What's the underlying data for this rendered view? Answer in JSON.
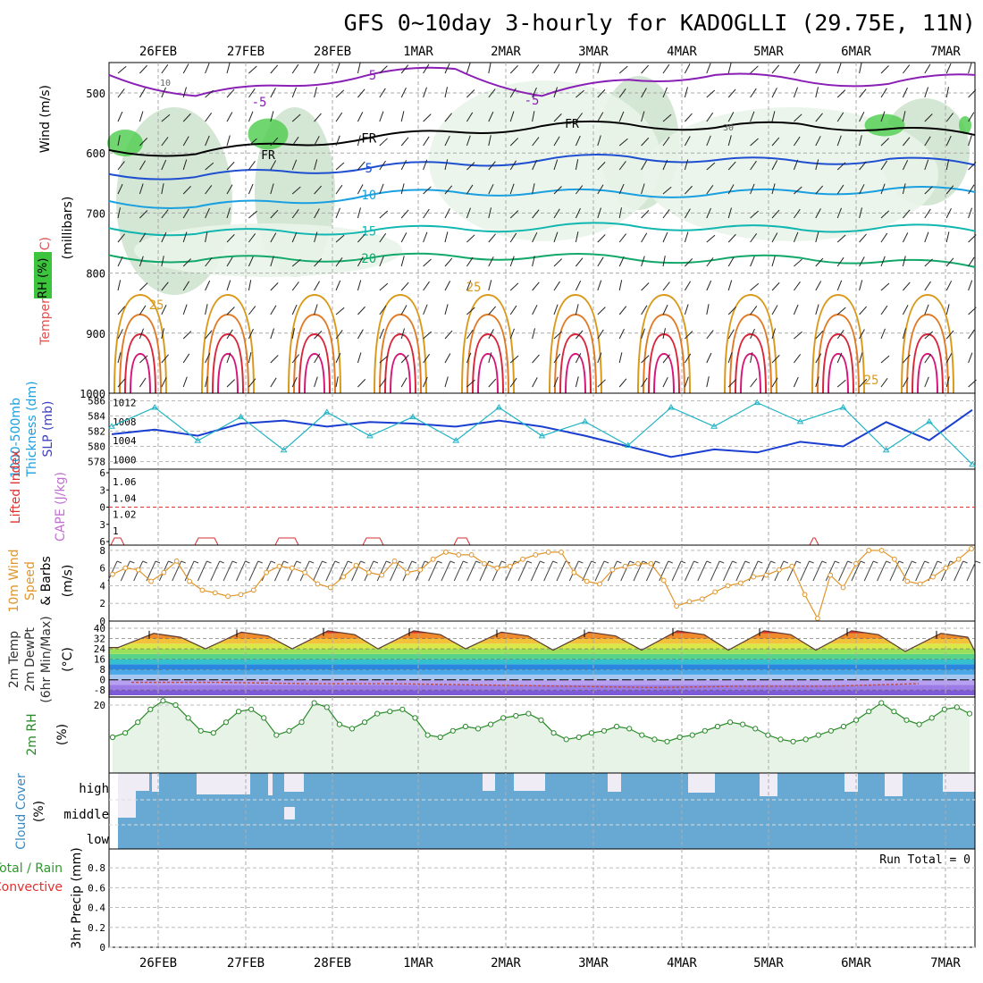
{
  "title": "GFS 0~10day 3-hourly for KADOGLLI (29.75E, 11N)",
  "dates_top": [
    "26FEB",
    "27FEB",
    "28FEB",
    "1MAR",
    "2MAR",
    "3MAR",
    "4MAR",
    "5MAR",
    "6MAR",
    "7MAR"
  ],
  "dates_bottom": [
    "26FEB",
    "27FEB",
    "28FEB",
    "1MAR",
    "2MAR",
    "3MAR",
    "4MAR",
    "5MAR",
    "6MAR",
    "7MAR"
  ],
  "colors": {
    "purple": "#8a1fb5",
    "black": "#000000",
    "blue": "#1f4fd1",
    "lightblue": "#1aa0e0",
    "teal": "#10b6b0",
    "green": "#12a86a",
    "orange": "#d99a1b",
    "dkorange": "#e07a25",
    "red": "#d9263a",
    "magenta": "#d6157a",
    "rh_light": "#e8f3e8",
    "rh_mid": "#b4c8b4",
    "rh_dark": "#4ccd4c",
    "cloud": "#68a9d4"
  },
  "panel_labels": {
    "upper": {
      "wind": "Wind (m/s)",
      "temp": "Temperature (°C)",
      "rh": "RH (%)",
      "pres": "(millibars)"
    },
    "thk": {
      "l1": "1000-500mb",
      "l2": "Thickness (dm)",
      "l3": "SLP (mb)"
    },
    "cape": {
      "l1": "Lifted Index",
      "l2": "CAPE (J/kg)"
    },
    "wind10": {
      "l1": "10m Wind",
      "l2": "Speed",
      "l3": "& Barbs",
      "l4": "(m/s)"
    },
    "temp2m": {
      "l1": "2m Temp",
      "l2": "2m DewPt",
      "l3": "(6hr Min/Max)",
      "l4": "(°C)"
    },
    "rh2m": {
      "l1": "2m RH",
      "l2": "(%)"
    },
    "cloud": {
      "l1": "Cloud Cover",
      "l2": "(%)"
    },
    "precip": {
      "l1": "Total / Rain",
      "l2": "Convective",
      "l3": "3hr Precip (mm)"
    }
  },
  "run_total": "Run Total = 0",
  "cloud_levels": [
    "high",
    "middle",
    "low"
  ],
  "chart_data": [
    {
      "type": "heatmap",
      "panel": "upper-air cross section",
      "ylabel": "millibars",
      "y_ticks": [
        "500",
        "600",
        "700",
        "800",
        "900",
        "1000"
      ],
      "contour_labels": [
        "-5",
        "FR",
        "5",
        "10",
        "15",
        "20",
        "25",
        "30",
        "10"
      ],
      "isotherms": [
        {
          "name": "-5",
          "values_mb": [
            470,
            505,
            488,
            470,
            460,
            505,
            478,
            470,
            480,
            485,
            470
          ]
        },
        {
          "name": "FR",
          "values_mb": [
            595,
            602,
            585,
            575,
            565,
            555,
            552,
            558,
            552,
            560,
            570
          ]
        },
        {
          "name": "5",
          "values_mb": [
            635,
            640,
            630,
            625,
            618,
            612,
            606,
            612,
            615,
            610,
            620
          ]
        },
        {
          "name": "10",
          "values_mb": [
            680,
            690,
            682,
            670,
            665,
            665,
            668,
            668,
            665,
            660,
            665
          ]
        },
        {
          "name": "15",
          "values_mb": [
            725,
            735,
            730,
            730,
            725,
            725,
            720,
            725,
            728,
            722,
            730
          ]
        },
        {
          "name": "20",
          "values_mb": [
            770,
            780,
            775,
            775,
            772,
            772,
            776,
            778,
            775,
            780,
            790
          ]
        }
      ]
    },
    {
      "type": "line",
      "panel": "thickness-slp",
      "x": [
        "25FEB12",
        "26FEB00",
        "26FEB12",
        "27FEB00",
        "27FEB12",
        "28FEB00",
        "28FEB12",
        "1MAR00",
        "1MAR12",
        "2MAR00",
        "2MAR12",
        "3MAR00",
        "3MAR12",
        "4MAR00",
        "4MAR12",
        "5MAR00",
        "5MAR12",
        "6MAR00",
        "6MAR12",
        "7MAR00",
        "7MAR06"
      ],
      "series": [
        {
          "name": "Thickness",
          "axis_ticks": [
            "586",
            "584",
            "582",
            "580",
            "578"
          ],
          "values": [
            581.6,
            582.2,
            581.4,
            583.0,
            583.4,
            582.6,
            583.2,
            583.0,
            582.6,
            583.4,
            582.6,
            581.4,
            580.0,
            578.6,
            579.6,
            579.2,
            580.6,
            580.0,
            583.2,
            580.8,
            584.8
          ]
        },
        {
          "name": "SLP",
          "axis_ticks": [
            "1012",
            "1008",
            "1004",
            "1000"
          ],
          "values": [
            1007,
            1011,
            1004,
            1009,
            1002,
            1010,
            1005,
            1009,
            1004,
            1011,
            1005,
            1008,
            1003,
            1011,
            1007,
            1012,
            1008,
            1011,
            1002,
            1008,
            999
          ]
        }
      ]
    },
    {
      "type": "line",
      "panel": "cape-li",
      "yticks_left": [
        "6",
        "3",
        "0",
        "3",
        "6"
      ],
      "yticks_right": [
        "1.06",
        "1.04",
        "1.02",
        "1"
      ],
      "series": [
        {
          "name": "Lifted Index",
          "events": [
            "26FEB",
            "26FEB12",
            "27FEB12",
            "28FEB12",
            "1MAR12",
            "5MAR12"
          ]
        }
      ]
    },
    {
      "type": "line",
      "panel": "10m wind",
      "ylim": [
        0,
        8
      ],
      "ytick_labels": [
        "0",
        "2",
        "4",
        "6",
        "8"
      ],
      "values": [
        5.3,
        6.0,
        5.8,
        4.5,
        5.5,
        6.8,
        4.5,
        3.5,
        3.2,
        2.8,
        3.0,
        3.5,
        5.5,
        6.2,
        6.0,
        5.5,
        4.2,
        3.8,
        5.0,
        6.3,
        5.5,
        5.2,
        6.8,
        5.5,
        5.8,
        7.0,
        7.8,
        7.5,
        7.5,
        6.5,
        6.0,
        6.2,
        7.0,
        7.5,
        7.8,
        7.8,
        5.5,
        4.5,
        4.2,
        5.8,
        6.2,
        6.5,
        6.5,
        4.6,
        1.7,
        2.2,
        2.5,
        3.3,
        4.0,
        4.3,
        5.0,
        5.2,
        5.8,
        6.2,
        3.0,
        0.3,
        5.2,
        3.8,
        6.5,
        8.0,
        8.0,
        7.0,
        4.5,
        4.2,
        5.0,
        6.0,
        7.0,
        8.2
      ]
    },
    {
      "type": "area",
      "panel": "2m temp",
      "ytick_labels": [
        "40",
        "32",
        "24",
        "16",
        "8",
        "0",
        "-8"
      ],
      "temp_max": [
        36,
        37,
        38,
        38,
        37,
        37,
        38,
        38,
        38,
        36
      ],
      "temp_min": [
        25,
        24,
        24,
        24,
        24,
        23,
        23,
        23,
        23,
        22
      ],
      "dewpt": [
        -2,
        -2,
        -3,
        -3,
        -4,
        -5,
        -6,
        -5,
        -5,
        -3
      ]
    },
    {
      "type": "area",
      "panel": "2m rh",
      "ytick_labels": [
        "20"
      ],
      "values": [
        5,
        7,
        12,
        18,
        22,
        20,
        14,
        8,
        7,
        12,
        17,
        18,
        14,
        6,
        8,
        12,
        21,
        19,
        11,
        9,
        12,
        16,
        17,
        18,
        14,
        6,
        5,
        8,
        10,
        9,
        11,
        14,
        15,
        16,
        13,
        7,
        4,
        5,
        7,
        8,
        10,
        9,
        6,
        4,
        3,
        5,
        6,
        8,
        10,
        12,
        11,
        9,
        6,
        4,
        3,
        4,
        6,
        8,
        10,
        13,
        17,
        21,
        17,
        13,
        11,
        14,
        18,
        19,
        16
      ]
    },
    {
      "type": "bar",
      "panel": "cloud cover",
      "categories": [
        "high",
        "middle",
        "low"
      ]
    },
    {
      "type": "line",
      "panel": "3hr precip",
      "ylim": [
        0,
        1
      ],
      "ytick_labels": [
        "0",
        "0.2",
        "0.4",
        "0.6",
        "0.8"
      ],
      "values": []
    }
  ]
}
